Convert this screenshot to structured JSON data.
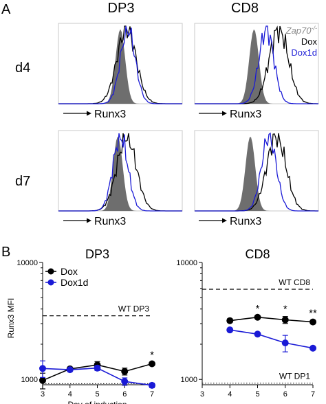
{
  "colors": {
    "black": "#000000",
    "blue": "#1a1ad6",
    "gray_fill": "#6e6e6e",
    "zap_label": "#8a8a8a"
  },
  "panel_a": {
    "label": "A",
    "columns": [
      "DP3",
      "CD8"
    ],
    "rows": [
      "d4",
      "d7"
    ],
    "xlabel": "Runx3",
    "legend": {
      "zap": "Zap70",
      "zap_sup": "-/-",
      "dox": "Dox",
      "dox1d": "Dox1d"
    }
  },
  "panel_b": {
    "label": "B"
  },
  "chart_data": [
    {
      "type": "line",
      "title": "DP3",
      "xlabel": "Day of induction",
      "ylabel": "Runx3 MFI",
      "xlim": [
        3,
        7
      ],
      "xticks": [
        "3",
        "4",
        "5",
        "6",
        "7"
      ],
      "ylim": [
        900,
        10000
      ],
      "yscale": "log",
      "yticks": [
        "1000",
        "10000"
      ],
      "legend": [
        "Dox",
        "Dox1d"
      ],
      "legend_position": "top-left",
      "series": [
        {
          "name": "Dox",
          "color": "#000000",
          "x": [
            3,
            4,
            5,
            6,
            7
          ],
          "y": [
            980,
            1230,
            1330,
            1170,
            1360
          ],
          "err": [
            150,
            40,
            90,
            80,
            40
          ]
        },
        {
          "name": "Dox1d",
          "color": "#1a1ad6",
          "x": [
            3,
            4,
            5,
            6,
            7
          ],
          "y": [
            1240,
            1210,
            1250,
            960,
            890
          ],
          "err": [
            200,
            40,
            60,
            70,
            40
          ]
        }
      ],
      "reference_lines": [
        {
          "label": "WT DP3",
          "y": 3500,
          "style": "dashed"
        },
        {
          "label": "",
          "y": 920,
          "style": "dotted"
        }
      ],
      "annotations": [
        {
          "text": "*",
          "x": 7
        }
      ]
    },
    {
      "type": "line",
      "title": "CD8",
      "xlabel": "",
      "ylabel": "",
      "xlim": [
        3,
        7
      ],
      "xticks": [
        "3",
        "4",
        "5",
        "6",
        "7"
      ],
      "ylim": [
        900,
        10000
      ],
      "yscale": "log",
      "yticks": [
        "1000",
        "10000"
      ],
      "series": [
        {
          "name": "Dox",
          "color": "#000000",
          "x": [
            4,
            5,
            6,
            7
          ],
          "y": [
            3180,
            3400,
            3230,
            3100
          ],
          "err": [
            110,
            90,
            220,
            90
          ]
        },
        {
          "name": "Dox1d",
          "color": "#1a1ad6",
          "x": [
            4,
            5,
            6,
            7
          ],
          "y": [
            2650,
            2440,
            2050,
            1850
          ],
          "err": [
            70,
            60,
            330,
            40
          ]
        }
      ],
      "reference_lines": [
        {
          "label": "WT CD8",
          "y": 5900,
          "style": "dashed"
        },
        {
          "label": "WT DP1",
          "y": 930,
          "style": "dotted"
        }
      ],
      "annotations": [
        {
          "text": "*",
          "x": 5
        },
        {
          "text": "*",
          "x": 6
        },
        {
          "text": "**",
          "x": 7
        }
      ]
    }
  ]
}
